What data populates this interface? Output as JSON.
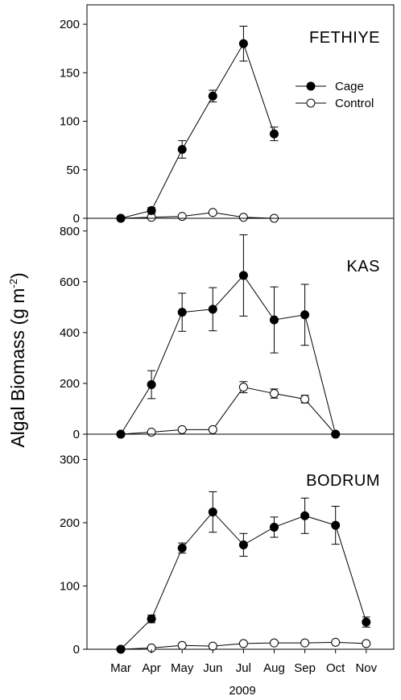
{
  "figure": {
    "ylabel_main": "Algal Biomass (g m",
    "ylabel_sup": "-2",
    "ylabel_close": ")",
    "xlabel": "2009"
  },
  "legend": {
    "cage": "Cage",
    "control": "Control"
  },
  "chart_data": [
    {
      "type": "line",
      "title": "FETHIYE",
      "categories": [
        "Mar",
        "Apr",
        "May",
        "Jun",
        "Jul",
        "Aug",
        "Sep",
        "Oct",
        "Nov"
      ],
      "ylim": [
        0,
        220
      ],
      "yticks": [
        0,
        50,
        100,
        150,
        200
      ],
      "series": [
        {
          "name": "Cage",
          "values": [
            0,
            8,
            71,
            126,
            180,
            87,
            null,
            null,
            null
          ],
          "err": [
            0,
            3,
            9,
            6,
            18,
            7,
            null,
            null,
            null
          ]
        },
        {
          "name": "Control",
          "values": [
            0,
            1,
            2,
            6,
            1,
            0,
            null,
            null,
            null
          ],
          "err": [
            0,
            0,
            0,
            0,
            0,
            0,
            null,
            null,
            null
          ]
        }
      ]
    },
    {
      "type": "line",
      "title": "KAS",
      "categories": [
        "Mar",
        "Apr",
        "May",
        "Jun",
        "Jul",
        "Aug",
        "Sep",
        "Oct",
        "Nov"
      ],
      "ylim": [
        0,
        850
      ],
      "yticks": [
        0,
        200,
        400,
        600,
        800
      ],
      "series": [
        {
          "name": "Cage",
          "values": [
            0,
            195,
            480,
            492,
            625,
            450,
            470,
            0,
            null
          ],
          "err": [
            0,
            55,
            75,
            85,
            160,
            130,
            120,
            0,
            null
          ]
        },
        {
          "name": "Control",
          "values": [
            0,
            8,
            18,
            18,
            185,
            160,
            138,
            0,
            null
          ],
          "err": [
            0,
            0,
            0,
            0,
            22,
            18,
            15,
            0,
            null
          ]
        }
      ]
    },
    {
      "type": "line",
      "title": "BODRUM",
      "categories": [
        "Mar",
        "Apr",
        "May",
        "Jun",
        "Jul",
        "Aug",
        "Sep",
        "Oct",
        "Nov"
      ],
      "ylim": [
        0,
        340
      ],
      "yticks": [
        0,
        100,
        200,
        300
      ],
      "series": [
        {
          "name": "Cage",
          "values": [
            0,
            48,
            160,
            217,
            165,
            193,
            211,
            196,
            43
          ],
          "err": [
            0,
            6,
            8,
            32,
            18,
            16,
            28,
            30,
            8
          ]
        },
        {
          "name": "Control",
          "values": [
            0,
            2,
            6,
            5,
            9,
            10,
            10,
            11,
            9
          ],
          "err": [
            0,
            0,
            0,
            0,
            0,
            0,
            0,
            0,
            0
          ]
        }
      ]
    }
  ]
}
